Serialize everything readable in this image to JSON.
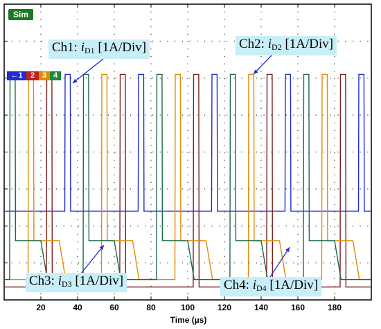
{
  "badge": "Sim",
  "channel_tabs": [
    {
      "label": "1",
      "color": "#1f2bd6"
    },
    {
      "label": "2",
      "color": "#c41e1e"
    },
    {
      "label": "3",
      "color": "#e08c00"
    },
    {
      "label": "4",
      "color": "#1a8a3a"
    }
  ],
  "labels": {
    "ch1": {
      "prefix": "Ch1: ",
      "var": "i",
      "sub": "D1",
      "suffix": " [1A/Div]"
    },
    "ch2": {
      "prefix": "Ch2: ",
      "var": "i",
      "sub": "D2",
      "suffix": " [1A/Div]"
    },
    "ch3": {
      "prefix": "Ch3: ",
      "var": "i",
      "sub": "D3",
      "suffix": " [1A/Div]"
    },
    "ch4": {
      "prefix": "Ch4: ",
      "var": "i",
      "sub": "D4",
      "suffix": " [1A/Div]"
    }
  },
  "chart_data": {
    "type": "line",
    "xlabel": "Time (µs)",
    "xlim": [
      0,
      200
    ],
    "xticks": [
      20,
      40,
      60,
      80,
      100,
      120,
      140,
      160,
      180
    ],
    "ylim": [
      0,
      8
    ],
    "grid": true,
    "series": [
      {
        "name": "Ch1",
        "color": "#1f2bd6",
        "baseline": 2.4,
        "peak": 6.1,
        "high": 2.4,
        "spikes": [
          33,
          73,
          113,
          153,
          193
        ]
      },
      {
        "name": "Ch2",
        "color": "#7a2020",
        "baseline": 0.35,
        "peak": 6.1,
        "high": 0.35,
        "spikes": [
          23,
          63,
          103,
          143,
          183
        ]
      },
      {
        "name": "Ch3",
        "color": "#e08c00",
        "baseline": 0.55,
        "peak": 6.1,
        "high": 1.6,
        "spikes": [
          13,
          53,
          93,
          133,
          173
        ]
      },
      {
        "name": "Ch4",
        "color": "#1a6a48",
        "baseline": 0.55,
        "peak": 6.1,
        "high": 1.6,
        "spikes": [
          3,
          43,
          83,
          123,
          163
        ]
      }
    ]
  }
}
